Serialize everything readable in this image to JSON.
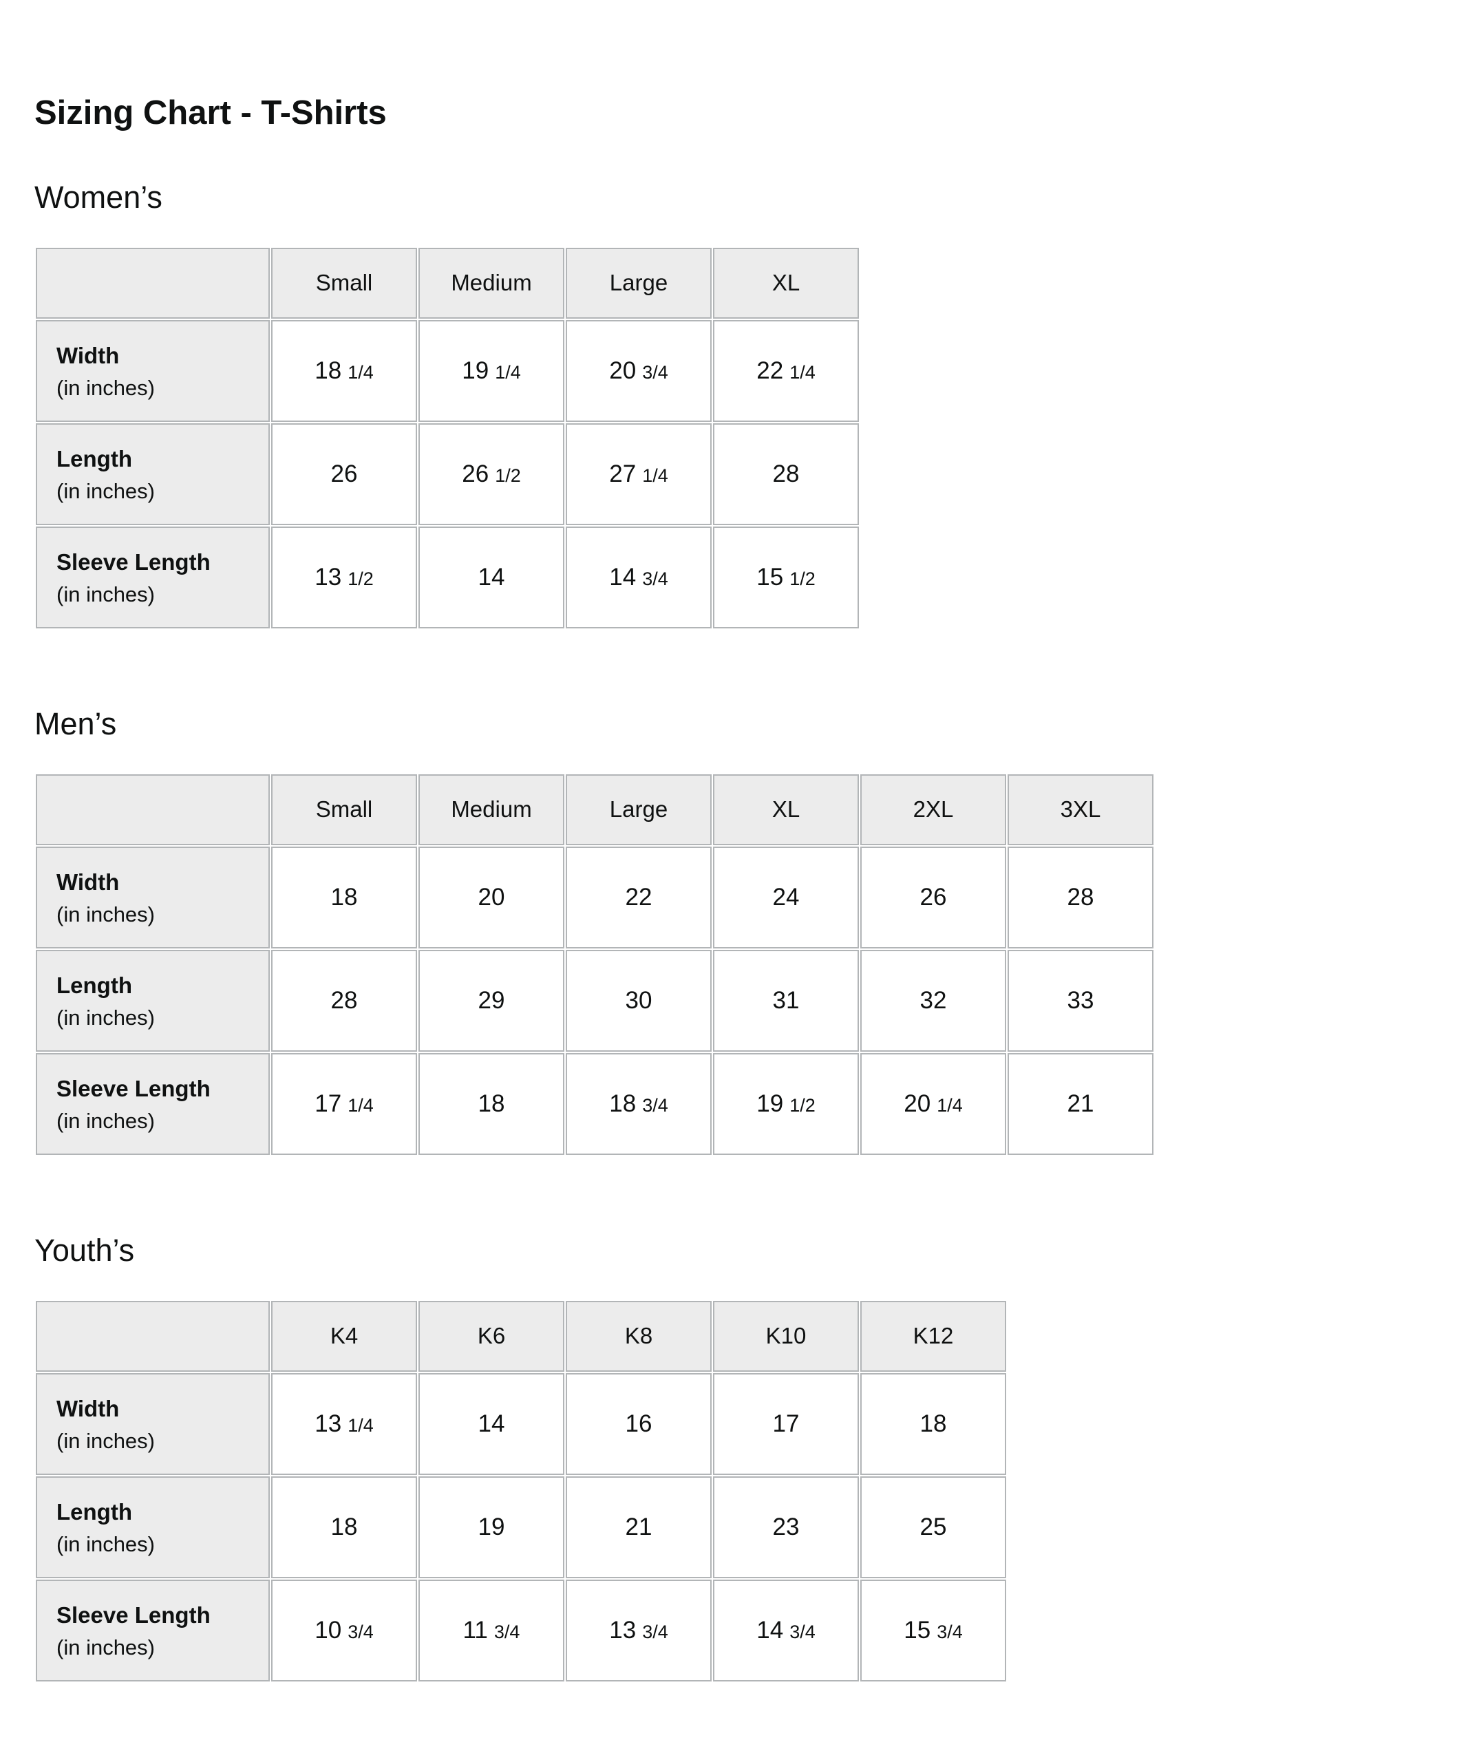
{
  "title": "Sizing Chart - T-Shirts",
  "colors": {
    "text": "#0f1111",
    "header_cell_fill": "#ececec",
    "label_cell_fill": "#ececec",
    "grid_border": "#b2b5b7",
    "background": "#ffffff"
  },
  "sections": [
    {
      "heading": "Women’s",
      "table": {
        "size_headers": [
          "Small",
          "Medium",
          "Large",
          "XL"
        ],
        "rows": [
          {
            "label": "Width",
            "sublabel": "(in inches)",
            "values": [
              {
                "whole": "18",
                "frac": "1/4"
              },
              {
                "whole": "19",
                "frac": "1/4"
              },
              {
                "whole": "20",
                "frac": "3/4"
              },
              {
                "whole": "22",
                "frac": "1/4"
              }
            ]
          },
          {
            "label": "Length",
            "sublabel": "(in inches)",
            "values": [
              {
                "whole": "26",
                "frac": ""
              },
              {
                "whole": "26",
                "frac": "1/2"
              },
              {
                "whole": "27",
                "frac": "1/4"
              },
              {
                "whole": "28",
                "frac": ""
              }
            ]
          },
          {
            "label": "Sleeve Length",
            "sublabel": "(in inches)",
            "values": [
              {
                "whole": "13",
                "frac": "1/2"
              },
              {
                "whole": "14",
                "frac": ""
              },
              {
                "whole": "14",
                "frac": "3/4"
              },
              {
                "whole": "15",
                "frac": "1/2"
              }
            ]
          }
        ]
      }
    },
    {
      "heading": "Men’s",
      "table": {
        "size_headers": [
          "Small",
          "Medium",
          "Large",
          "XL",
          "2XL",
          "3XL"
        ],
        "rows": [
          {
            "label": "Width",
            "sublabel": "(in inches)",
            "values": [
              {
                "whole": "18",
                "frac": ""
              },
              {
                "whole": "20",
                "frac": ""
              },
              {
                "whole": "22",
                "frac": ""
              },
              {
                "whole": "24",
                "frac": ""
              },
              {
                "whole": "26",
                "frac": ""
              },
              {
                "whole": "28",
                "frac": ""
              }
            ]
          },
          {
            "label": "Length",
            "sublabel": "(in inches)",
            "values": [
              {
                "whole": "28",
                "frac": ""
              },
              {
                "whole": "29",
                "frac": ""
              },
              {
                "whole": "30",
                "frac": ""
              },
              {
                "whole": "31",
                "frac": ""
              },
              {
                "whole": "32",
                "frac": ""
              },
              {
                "whole": "33",
                "frac": ""
              }
            ]
          },
          {
            "label": "Sleeve Length",
            "sublabel": "(in inches)",
            "values": [
              {
                "whole": "17",
                "frac": "1/4"
              },
              {
                "whole": "18",
                "frac": ""
              },
              {
                "whole": "18",
                "frac": "3/4"
              },
              {
                "whole": "19",
                "frac": "1/2"
              },
              {
                "whole": "20",
                "frac": "1/4"
              },
              {
                "whole": "21",
                "frac": ""
              }
            ]
          }
        ]
      }
    },
    {
      "heading": "Youth’s",
      "table": {
        "size_headers": [
          "K4",
          "K6",
          "K8",
          "K10",
          "K12"
        ],
        "rows": [
          {
            "label": "Width",
            "sublabel": "(in inches)",
            "values": [
              {
                "whole": "13",
                "frac": "1/4"
              },
              {
                "whole": "14",
                "frac": ""
              },
              {
                "whole": "16",
                "frac": ""
              },
              {
                "whole": "17",
                "frac": ""
              },
              {
                "whole": "18",
                "frac": ""
              }
            ]
          },
          {
            "label": "Length",
            "sublabel": "(in inches)",
            "values": [
              {
                "whole": "18",
                "frac": ""
              },
              {
                "whole": "19",
                "frac": ""
              },
              {
                "whole": "21",
                "frac": ""
              },
              {
                "whole": "23",
                "frac": ""
              },
              {
                "whole": "25",
                "frac": ""
              }
            ]
          },
          {
            "label": "Sleeve Length",
            "sublabel": "(in inches)",
            "values": [
              {
                "whole": "10",
                "frac": "3/4"
              },
              {
                "whole": "11",
                "frac": "3/4"
              },
              {
                "whole": "13",
                "frac": "3/4"
              },
              {
                "whole": "14",
                "frac": "3/4"
              },
              {
                "whole": "15",
                "frac": "3/4"
              }
            ]
          }
        ]
      }
    }
  ]
}
